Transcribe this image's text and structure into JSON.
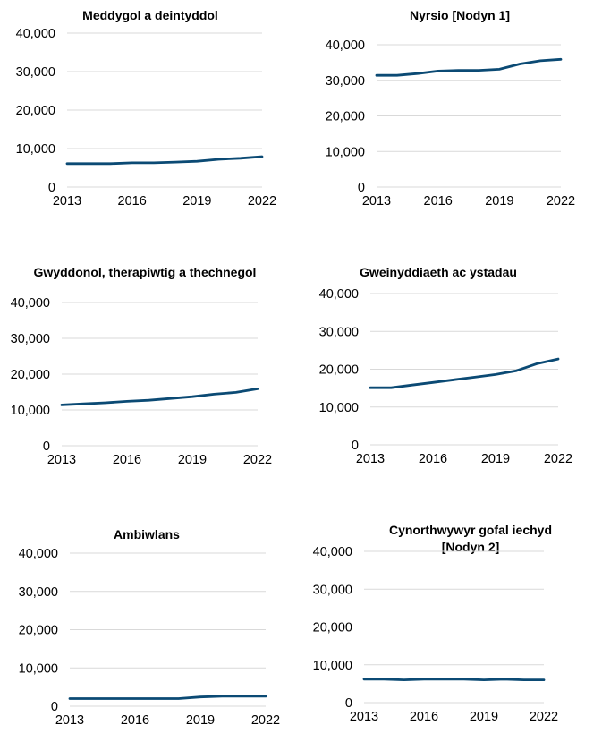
{
  "chart_data": [
    {
      "type": "line",
      "title": [
        "Meddygol a deintyddol"
      ],
      "x": [
        2013,
        2014,
        2015,
        2016,
        2017,
        2018,
        2019,
        2020,
        2021,
        2022
      ],
      "x_tick_labels": [
        "2013",
        "2016",
        "2019",
        "2022"
      ],
      "y_tick_labels": [
        "0",
        "10,000",
        "20,000",
        "30,000",
        "40,000"
      ],
      "ylim": [
        0,
        40000
      ],
      "series": [
        {
          "name": "Meddygol a deintyddol",
          "values": [
            6100,
            6100,
            6100,
            6300,
            6300,
            6500,
            6700,
            7200,
            7500,
            7900
          ]
        }
      ]
    },
    {
      "type": "line",
      "title": [
        "Nyrsio [Nodyn 1]"
      ],
      "x": [
        2013,
        2014,
        2015,
        2016,
        2017,
        2018,
        2019,
        2020,
        2021,
        2022
      ],
      "x_tick_labels": [
        "2013",
        "2016",
        "2019",
        "2022"
      ],
      "y_tick_labels": [
        "0",
        "10,000",
        "20,000",
        "30,000",
        "40,000"
      ],
      "ylim": [
        0,
        40000
      ],
      "series": [
        {
          "name": "Nyrsio",
          "values": [
            31400,
            31400,
            31900,
            32600,
            32800,
            32800,
            33100,
            34600,
            35500,
            35900
          ]
        }
      ]
    },
    {
      "type": "line",
      "title": [
        "Gwyddonol, therapiwtig a thechnegol"
      ],
      "x": [
        2013,
        2014,
        2015,
        2016,
        2017,
        2018,
        2019,
        2020,
        2021,
        2022
      ],
      "x_tick_labels": [
        "2013",
        "2016",
        "2019",
        "2022"
      ],
      "y_tick_labels": [
        "0",
        "10,000",
        "20,000",
        "30,000",
        "40,000"
      ],
      "ylim": [
        0,
        40000
      ],
      "series": [
        {
          "name": "Gwyddonol, therapiwtig a thechnegol",
          "values": [
            11400,
            11700,
            12000,
            12400,
            12700,
            13200,
            13700,
            14400,
            14900,
            15900
          ]
        }
      ]
    },
    {
      "type": "line",
      "title": [
        "Gweinyddiaeth ac ystadau"
      ],
      "x": [
        2013,
        2014,
        2015,
        2016,
        2017,
        2018,
        2019,
        2020,
        2021,
        2022
      ],
      "x_tick_labels": [
        "2013",
        "2016",
        "2019",
        "2022"
      ],
      "y_tick_labels": [
        "0",
        "10,000",
        "20,000",
        "30,000",
        "40,000"
      ],
      "ylim": [
        0,
        40000
      ],
      "series": [
        {
          "name": "Gweinyddiaeth ac ystadau",
          "values": [
            15100,
            15100,
            15800,
            16500,
            17200,
            17900,
            18600,
            19600,
            21500,
            22700
          ]
        }
      ]
    },
    {
      "type": "line",
      "title": [
        "Ambiwlans"
      ],
      "x": [
        2013,
        2014,
        2015,
        2016,
        2017,
        2018,
        2019,
        2020,
        2021,
        2022
      ],
      "x_tick_labels": [
        "2013",
        "2016",
        "2019",
        "2022"
      ],
      "y_tick_labels": [
        "0",
        "10,000",
        "20,000",
        "30,000",
        "40,000"
      ],
      "ylim": [
        0,
        40000
      ],
      "series": [
        {
          "name": "Ambiwlans",
          "values": [
            2000,
            2000,
            2000,
            2000,
            2000,
            2000,
            2400,
            2600,
            2600,
            2600
          ]
        }
      ]
    },
    {
      "type": "line",
      "title": [
        "Cynorthwywyr gofal iechyd",
        "[Nodyn 2]"
      ],
      "x": [
        2013,
        2014,
        2015,
        2016,
        2017,
        2018,
        2019,
        2020,
        2021,
        2022
      ],
      "x_tick_labels": [
        "2013",
        "2016",
        "2019",
        "2022"
      ],
      "y_tick_labels": [
        "0",
        "10,000",
        "20,000",
        "30,000",
        "40,000"
      ],
      "ylim": [
        0,
        40000
      ],
      "series": [
        {
          "name": "Cynorthwywyr gofal iechyd",
          "values": [
            6200,
            6200,
            6000,
            6200,
            6200,
            6200,
            6000,
            6200,
            6000,
            6000
          ]
        }
      ]
    }
  ],
  "style": {
    "line_color": "#0b4a74",
    "grid_color": "#d9d9d9"
  }
}
